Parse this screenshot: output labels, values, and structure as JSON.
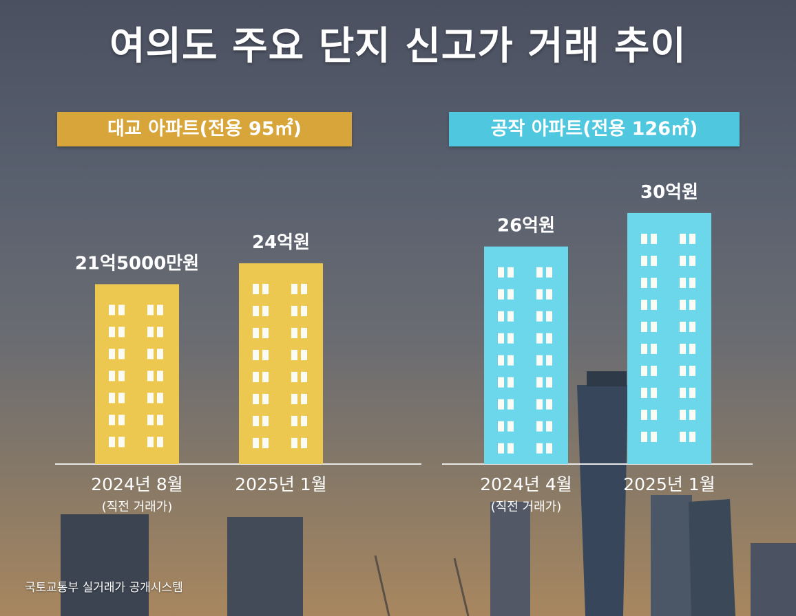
{
  "title": "여의도 주요 단지 신고가 거래 추이",
  "source": "국토교통부 실거래가 공개시스템",
  "colors": {
    "left_series": "#ecc850",
    "right_series": "#6cd6ea",
    "left_label_bg": "#d7a53a",
    "right_label_bg": "#4fc7de",
    "window": "#fbfbf6"
  },
  "chart_data": [
    {
      "type": "bar",
      "title": "대교 아파트(전용 95㎡)",
      "categories": [
        "2024년 8월",
        "2025년 1월"
      ],
      "category_notes": [
        "(직전 거래가)",
        ""
      ],
      "values": [
        21.5,
        24
      ],
      "data_labels": [
        "21억5000만원",
        "24억원"
      ],
      "unit": "억원",
      "color": "#ecc850"
    },
    {
      "type": "bar",
      "title": "공작 아파트(전용 126㎡)",
      "categories": [
        "2024년 4월",
        "2025년 1월"
      ],
      "category_notes": [
        "(직전 거래가)",
        ""
      ],
      "values": [
        26,
        30
      ],
      "data_labels": [
        "26억원",
        "30억원"
      ],
      "unit": "억원",
      "color": "#6cd6ea"
    }
  ]
}
